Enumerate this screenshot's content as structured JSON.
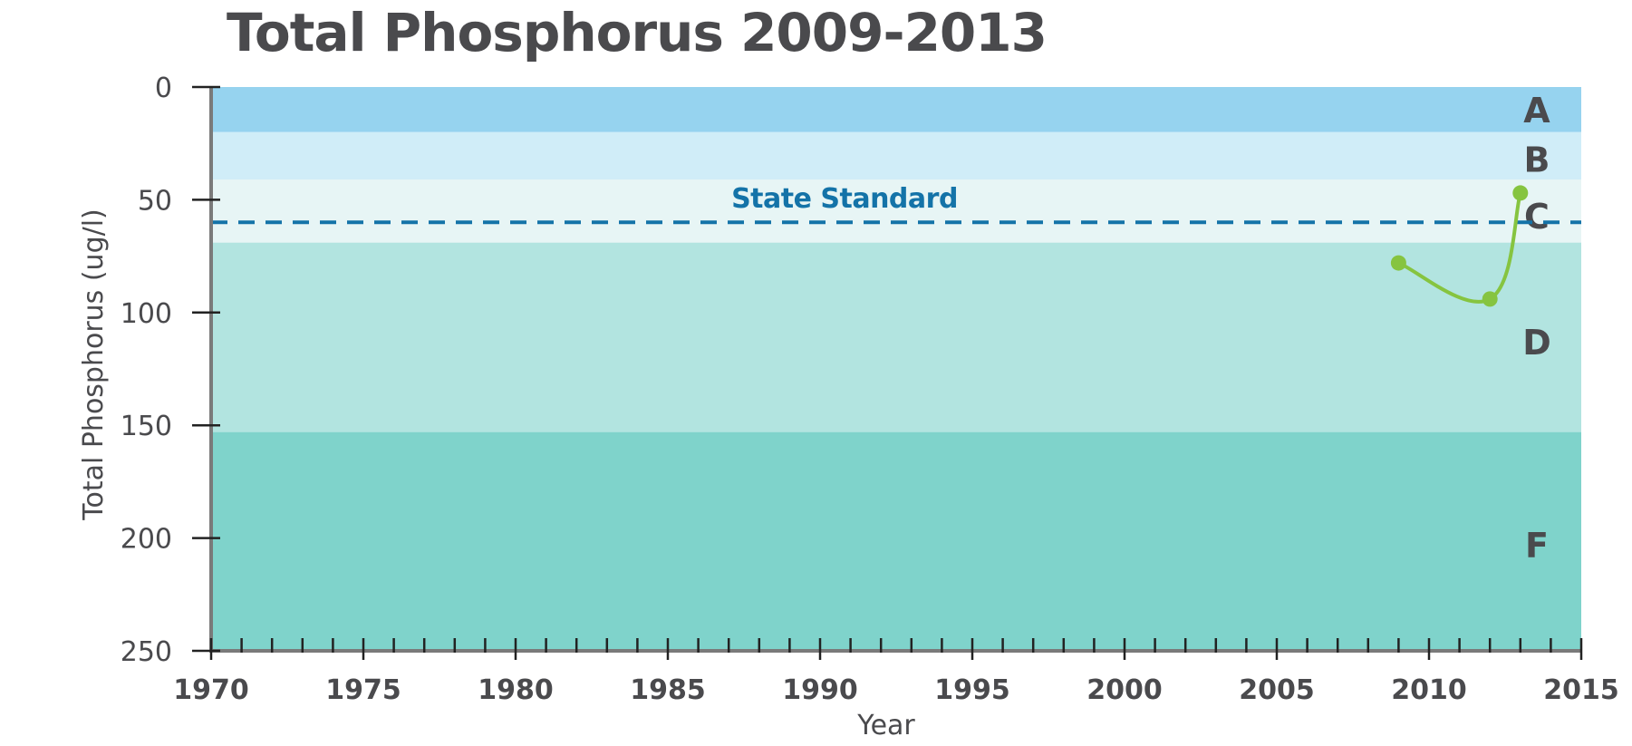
{
  "chart_data": {
    "type": "line",
    "title": "Total Phosphorus 2009-2013",
    "xlabel": "Year",
    "ylabel": "Total Phosphorus (ug/l)",
    "xlim": [
      1970,
      2015
    ],
    "ylim": [
      0,
      250
    ],
    "y_inverted": true,
    "x_ticks": [
      1970,
      1975,
      1980,
      1985,
      1990,
      1995,
      2000,
      2005,
      2010,
      2015
    ],
    "y_ticks": [
      0,
      50,
      100,
      150,
      200,
      250
    ],
    "x_minor_tick_step": 1,
    "grid": false,
    "series": [
      {
        "color": "#86c440",
        "points": [
          {
            "x": 2009,
            "y": 78
          },
          {
            "x": 2012,
            "y": 94
          },
          {
            "x": 2013,
            "y": 47
          }
        ]
      }
    ],
    "reference_line": {
      "label": "State Standard",
      "y": 60,
      "color": "#1473a8",
      "style": "dashed"
    },
    "bands": [
      {
        "label": "A",
        "from": 0,
        "to": 20,
        "color": "#96d3ef"
      },
      {
        "label": "B",
        "from": 20,
        "to": 41,
        "color": "#d0edf8"
      },
      {
        "label": "C",
        "from": 41,
        "to": 69,
        "color": "#e7f5f5"
      },
      {
        "label": "D",
        "from": 69,
        "to": 153,
        "color": "#b2e4e0"
      },
      {
        "label": "F",
        "from": 153,
        "to": 250,
        "color": "#7fd3cb"
      }
    ]
  }
}
